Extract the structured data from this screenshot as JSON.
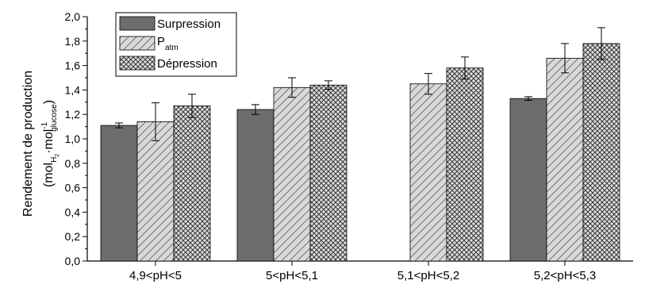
{
  "chart_data": {
    "type": "bar",
    "title": "",
    "xlabel": "",
    "ylabel_line1": "Rendement de production",
    "ylabel_line2": {
      "open": "(mol",
      "h2_sub": "H",
      "h2_subsub": "2",
      "dot": "·mol",
      "sup": "-1",
      "glucose_sub": "glucose",
      "close": ")"
    },
    "ylim": [
      0,
      2.0
    ],
    "yticks": [
      0.0,
      0.2,
      0.4,
      0.6,
      0.8,
      1.0,
      1.2,
      1.4,
      1.6,
      1.8,
      2.0
    ],
    "ytick_labels": [
      "0,0",
      "0,2",
      "0,4",
      "0,6",
      "0,8",
      "1,0",
      "1,2",
      "1,4",
      "1,6",
      "1,8",
      "2,0"
    ],
    "categories": [
      "4,9<pH<5",
      "5<pH<5,1",
      "5,1<pH<5,2",
      "5,2<pH<5,3"
    ],
    "grid": false,
    "legend_position": "top-left",
    "series": [
      {
        "name": "Surpression",
        "pattern": "solid",
        "color": "#6d6d6d",
        "values": [
          1.11,
          1.24,
          null,
          1.33
        ],
        "errors": [
          0.02,
          0.04,
          null,
          0.015
        ]
      },
      {
        "name": "P",
        "name_sub": "atm",
        "pattern": "diagonal-hatch",
        "color": "#d4d4d4",
        "values": [
          1.14,
          1.42,
          1.45,
          1.66
        ],
        "errors": [
          0.155,
          0.08,
          0.085,
          0.12
        ]
      },
      {
        "name": "Dépression",
        "pattern": "cross-hatch",
        "color": "#cfcfcf",
        "values": [
          1.27,
          1.44,
          1.58,
          1.78
        ],
        "errors": [
          0.095,
          0.035,
          0.09,
          0.13
        ]
      }
    ]
  }
}
